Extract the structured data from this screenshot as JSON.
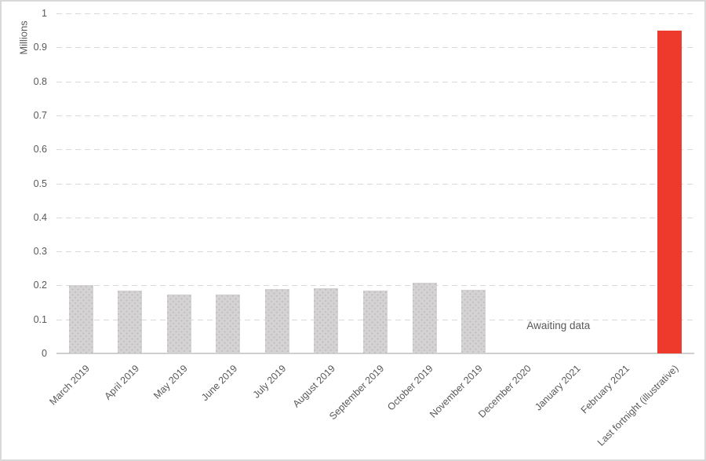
{
  "chart_data": {
    "type": "bar",
    "ylabel": "Millions",
    "ylim": [
      0,
      1
    ],
    "ytick_labels": [
      "0",
      "0.1",
      "0.2",
      "0.3",
      "0.4",
      "0.5",
      "0.6",
      "0.7",
      "0.8",
      "0.9",
      "1"
    ],
    "grid": "dashed-horizontal",
    "legend": "none",
    "categories": [
      "March 2019",
      "April 2019",
      "May 2019",
      "June 2019",
      "July 2019",
      "August 2019",
      "September 2019",
      "October 2019",
      "November 2019",
      "December 2020",
      "January 2021",
      "February 2021",
      "Last fortnight (illustrative)"
    ],
    "values": [
      0.202,
      0.185,
      0.173,
      0.173,
      0.19,
      0.191,
      0.184,
      0.209,
      0.187,
      null,
      null,
      null,
      0.95
    ],
    "annotation": "Awaiting data",
    "highlight_index": 12,
    "colors": {
      "bar_default": "#d4d2d2",
      "bar_highlight": "#ee3a2c",
      "grid": "#d9d9d9",
      "axis_line": "#cfcfcf",
      "text": "#595959"
    }
  }
}
